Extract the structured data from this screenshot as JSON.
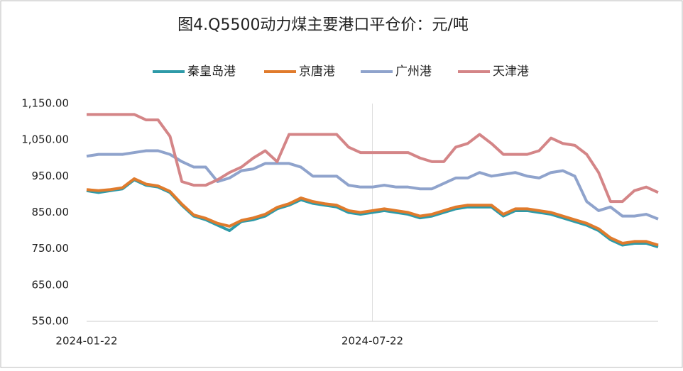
{
  "chart_data": {
    "type": "line",
    "title": "图4.Q5500动力煤主要港口平仓价：元/吨",
    "categories": [
      "2024-01-22",
      null,
      null,
      null,
      null,
      null,
      null,
      null,
      null,
      null,
      null,
      null,
      null,
      null,
      null,
      null,
      null,
      null,
      null,
      null,
      null,
      null,
      null,
      null,
      "2024-07-22",
      null,
      null,
      null,
      null,
      null,
      null,
      null,
      null,
      null,
      null,
      null,
      null,
      null,
      null,
      null,
      null,
      null,
      null,
      null,
      null,
      null,
      null,
      null,
      null
    ],
    "series": [
      {
        "name": "秦皇岛港",
        "color": "#2e9aa8",
        "values": [
          910,
          905,
          910,
          915,
          940,
          925,
          920,
          905,
          870,
          840,
          830,
          815,
          800,
          825,
          830,
          840,
          860,
          870,
          885,
          875,
          870,
          865,
          850,
          845,
          850,
          855,
          850,
          845,
          835,
          840,
          850,
          860,
          865,
          865,
          865,
          840,
          855,
          855,
          850,
          845,
          835,
          825,
          815,
          800,
          775,
          760,
          765,
          765,
          755
        ]
      },
      {
        "name": "京唐港",
        "color": "#e07b2c",
        "values": [
          913,
          910,
          913,
          918,
          943,
          928,
          923,
          908,
          873,
          843,
          834,
          820,
          812,
          828,
          835,
          845,
          864,
          874,
          890,
          880,
          874,
          870,
          855,
          850,
          855,
          860,
          855,
          850,
          840,
          845,
          855,
          865,
          870,
          870,
          870,
          845,
          860,
          860,
          855,
          850,
          840,
          830,
          820,
          805,
          780,
          765,
          770,
          770,
          760
        ]
      },
      {
        "name": "广州港",
        "color": "#8fa3cc",
        "values": [
          1005,
          1010,
          1010,
          1010,
          1015,
          1020,
          1020,
          1010,
          990,
          975,
          975,
          935,
          945,
          965,
          970,
          985,
          985,
          985,
          975,
          950,
          950,
          950,
          925,
          920,
          920,
          925,
          920,
          920,
          915,
          915,
          930,
          945,
          945,
          960,
          950,
          955,
          960,
          950,
          945,
          960,
          965,
          950,
          880,
          855,
          865,
          840,
          840,
          845,
          832
        ]
      },
      {
        "name": "天津港",
        "color": "#d48587",
        "values": [
          1120,
          1120,
          1120,
          1120,
          1120,
          1105,
          1105,
          1060,
          935,
          925,
          925,
          940,
          960,
          975,
          1000,
          1020,
          990,
          1065,
          1065,
          1065,
          1065,
          1065,
          1030,
          1015,
          1015,
          1015,
          1015,
          1015,
          1000,
          990,
          990,
          1030,
          1040,
          1065,
          1040,
          1010,
          1010,
          1010,
          1020,
          1055,
          1040,
          1035,
          1010,
          960,
          880,
          880,
          910,
          920,
          905
        ]
      }
    ],
    "ylim": [
      550,
      1150
    ],
    "yticks": [
      {
        "value": 550,
        "label": "550.00"
      },
      {
        "value": 650,
        "label": "650.00"
      },
      {
        "value": 750,
        "label": "750.00"
      },
      {
        "value": 850,
        "label": "850.00"
      },
      {
        "value": 950,
        "label": "950.00"
      },
      {
        "value": 1050,
        "label": "1,050.00"
      },
      {
        "value": 1150,
        "label": "1,150.00"
      }
    ],
    "grid": false
  }
}
